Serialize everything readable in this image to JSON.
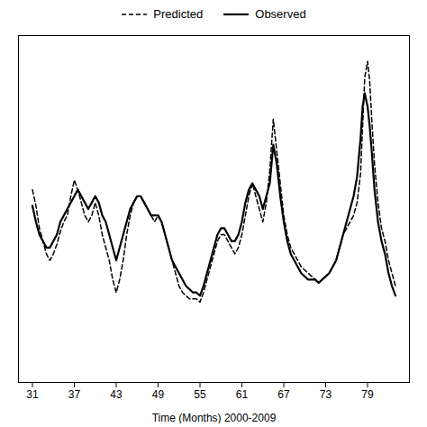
{
  "chart_data": {
    "type": "line",
    "xlabel": "Time (Months) 2000-2009",
    "x": [
      31,
      31.5,
      32,
      32.5,
      33,
      33.5,
      34,
      34.5,
      35,
      35.5,
      36,
      36.5,
      37,
      37.5,
      38,
      38.5,
      39,
      39.5,
      40,
      40.5,
      41,
      41.5,
      42,
      42.5,
      43,
      43.5,
      44,
      44.5,
      45,
      45.5,
      46,
      46.5,
      47,
      47.5,
      48,
      48.5,
      49,
      49.5,
      50,
      50.5,
      51,
      51.5,
      52,
      52.5,
      53,
      53.5,
      54,
      54.5,
      55,
      55.5,
      56,
      56.5,
      57,
      57.5,
      58,
      58.5,
      59,
      59.5,
      60,
      60.5,
      61,
      61.5,
      62,
      62.5,
      63,
      63.5,
      64,
      64.5,
      65,
      65.5,
      66,
      66.5,
      67,
      67.5,
      68,
      68.5,
      69,
      69.5,
      70,
      70.5,
      71,
      71.5,
      72,
      72.5,
      73,
      73.5,
      74,
      74.5,
      75,
      75.5,
      76,
      76.5,
      77,
      77.5,
      78,
      78.3,
      78.6,
      79,
      79.3,
      79.6,
      80,
      80.5,
      81,
      81.5,
      82,
      82.5,
      83
    ],
    "series": [
      {
        "name": "Predicted",
        "color": "#000000",
        "line_style": "dashed",
        "values": [
          0.6,
          0.55,
          0.48,
          0.44,
          0.4,
          0.38,
          0.4,
          0.43,
          0.47,
          0.5,
          0.52,
          0.58,
          0.63,
          0.6,
          0.56,
          0.52,
          0.5,
          0.52,
          0.56,
          0.52,
          0.46,
          0.42,
          0.38,
          0.32,
          0.28,
          0.32,
          0.38,
          0.46,
          0.52,
          0.56,
          0.58,
          0.58,
          0.56,
          0.54,
          0.52,
          0.5,
          0.52,
          0.5,
          0.46,
          0.42,
          0.38,
          0.34,
          0.3,
          0.28,
          0.27,
          0.26,
          0.26,
          0.26,
          0.25,
          0.28,
          0.32,
          0.36,
          0.4,
          0.44,
          0.46,
          0.46,
          0.44,
          0.42,
          0.4,
          0.42,
          0.46,
          0.52,
          0.58,
          0.62,
          0.58,
          0.54,
          0.5,
          0.56,
          0.66,
          0.82,
          0.72,
          0.62,
          0.52,
          0.46,
          0.42,
          0.4,
          0.38,
          0.36,
          0.35,
          0.34,
          0.33,
          0.32,
          0.31,
          0.32,
          0.33,
          0.34,
          0.36,
          0.38,
          0.42,
          0.46,
          0.48,
          0.5,
          0.52,
          0.56,
          0.65,
          0.8,
          0.95,
          1.0,
          0.94,
          0.82,
          0.68,
          0.56,
          0.48,
          0.44,
          0.38,
          0.34,
          0.3
        ]
      },
      {
        "name": "Observed",
        "color": "#000000",
        "line_style": "solid",
        "values": [
          0.55,
          0.5,
          0.46,
          0.44,
          0.42,
          0.42,
          0.44,
          0.46,
          0.5,
          0.52,
          0.54,
          0.56,
          0.58,
          0.6,
          0.58,
          0.56,
          0.54,
          0.56,
          0.58,
          0.56,
          0.52,
          0.5,
          0.46,
          0.42,
          0.38,
          0.42,
          0.46,
          0.5,
          0.54,
          0.56,
          0.58,
          0.58,
          0.56,
          0.54,
          0.52,
          0.52,
          0.52,
          0.5,
          0.46,
          0.42,
          0.38,
          0.36,
          0.34,
          0.32,
          0.3,
          0.29,
          0.28,
          0.28,
          0.27,
          0.3,
          0.34,
          0.38,
          0.42,
          0.46,
          0.48,
          0.48,
          0.46,
          0.44,
          0.44,
          0.46,
          0.5,
          0.56,
          0.6,
          0.62,
          0.6,
          0.58,
          0.54,
          0.58,
          0.62,
          0.74,
          0.68,
          0.58,
          0.5,
          0.44,
          0.4,
          0.38,
          0.36,
          0.34,
          0.33,
          0.32,
          0.32,
          0.32,
          0.31,
          0.32,
          0.33,
          0.34,
          0.36,
          0.38,
          0.42,
          0.46,
          0.5,
          0.54,
          0.58,
          0.64,
          0.76,
          0.86,
          0.9,
          0.86,
          0.8,
          0.72,
          0.6,
          0.5,
          0.44,
          0.4,
          0.34,
          0.3,
          0.27
        ]
      }
    ],
    "xlim": [
      29,
      85
    ],
    "xticks": [
      31,
      37,
      43,
      49,
      55,
      61,
      67,
      73,
      79
    ],
    "ylim": [
      0,
      1.08
    ],
    "yticks": [],
    "tick_labels": "x",
    "grid": false,
    "legend": "top"
  }
}
